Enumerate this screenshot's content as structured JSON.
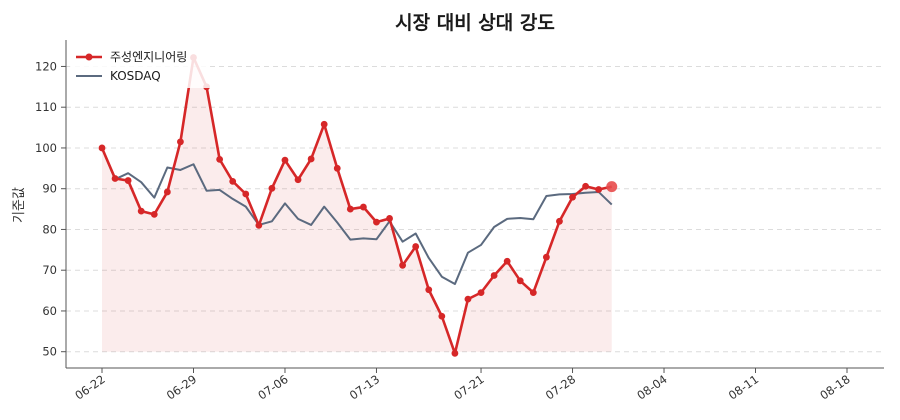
{
  "chart_data": {
    "type": "line",
    "title": "시장 대비 상대 강도",
    "xlabel": "",
    "ylabel": "기준값",
    "ylim": [
      46,
      126
    ],
    "yticks": [
      50,
      60,
      70,
      80,
      90,
      100,
      110,
      120
    ],
    "x": [
      "06-22",
      "06-23",
      "06-24",
      "06-25",
      "06-26",
      "06-27",
      "06-28",
      "06-29",
      "06-30",
      "07-01",
      "07-02",
      "07-03",
      "07-04",
      "07-05",
      "07-06",
      "07-07",
      "07-08",
      "07-09",
      "07-10",
      "07-11",
      "07-12",
      "07-13",
      "07-14",
      "07-15",
      "07-16",
      "07-17",
      "07-18",
      "07-19",
      "07-20",
      "07-21",
      "07-22",
      "07-23",
      "07-24",
      "07-25",
      "07-26",
      "07-27",
      "07-28",
      "07-29",
      "07-30",
      "07-31",
      "08-01",
      "08-02",
      "08-03",
      "08-04",
      "08-05",
      "08-06",
      "08-07",
      "08-08",
      "08-09",
      "08-10",
      "08-11",
      "08-12",
      "08-13",
      "08-14",
      "08-15",
      "08-16",
      "08-17",
      "08-18"
    ],
    "xticks": [
      "06-22",
      "06-29",
      "07-06",
      "07-13",
      "07-21",
      "07-28",
      "08-04",
      "08-11",
      "08-18"
    ],
    "series": [
      {
        "name": "주성엔지니어링",
        "color": "#d62728",
        "fill": true,
        "markers": true,
        "points": [
          [
            "06-22",
            100.0
          ],
          [
            "06-23",
            92.5
          ],
          [
            "06-24",
            92.0
          ],
          [
            "06-25",
            84.5
          ],
          [
            "06-26",
            83.7
          ],
          [
            "06-27",
            89.2
          ],
          [
            "06-28",
            101.5
          ],
          [
            "06-29",
            122.2
          ],
          [
            "06-30",
            115.0
          ],
          [
            "07-01",
            97.2
          ],
          [
            "07-02",
            91.8
          ],
          [
            "07-03",
            88.7
          ],
          [
            "07-04",
            81.0
          ],
          [
            "07-05",
            90.1
          ],
          [
            "07-06",
            97.0
          ],
          [
            "07-07",
            92.2
          ],
          [
            "07-08",
            97.3
          ],
          [
            "07-09",
            105.8
          ],
          [
            "07-10",
            95.0
          ],
          [
            "07-11",
            85.0
          ],
          [
            "07-12",
            85.5
          ],
          [
            "07-13",
            81.8
          ],
          [
            "07-14",
            82.7
          ],
          [
            "07-15",
            71.2
          ],
          [
            "07-16",
            75.8
          ],
          [
            "07-17",
            65.2
          ],
          [
            "07-18",
            58.7
          ],
          [
            "07-19",
            49.6
          ],
          [
            "07-20",
            62.9
          ],
          [
            "07-21",
            64.5
          ],
          [
            "07-22",
            68.7
          ],
          [
            "07-23",
            72.2
          ],
          [
            "07-24",
            67.4
          ],
          [
            "07-25",
            64.5
          ],
          [
            "07-26",
            73.2
          ],
          [
            "07-27",
            82.0
          ],
          [
            "07-28",
            87.9
          ],
          [
            "07-29",
            90.6
          ],
          [
            "07-30",
            89.8
          ],
          [
            "07-31",
            90.5
          ]
        ]
      },
      {
        "name": "KOSDAQ",
        "color": "#5b6a7f",
        "fill": false,
        "markers": false,
        "points": [
          [
            "06-22",
            100.0
          ],
          [
            "06-23",
            92.3
          ],
          [
            "06-24",
            93.8
          ],
          [
            "06-25",
            91.6
          ],
          [
            "06-26",
            87.8
          ],
          [
            "06-27",
            95.2
          ],
          [
            "06-28",
            94.6
          ],
          [
            "06-29",
            96.0
          ],
          [
            "06-30",
            89.5
          ],
          [
            "07-01",
            89.7
          ],
          [
            "07-02",
            87.5
          ],
          [
            "07-03",
            85.6
          ],
          [
            "07-04",
            81.1
          ],
          [
            "07-05",
            82.0
          ],
          [
            "07-06",
            86.4
          ],
          [
            "07-07",
            82.6
          ],
          [
            "07-08",
            81.1
          ],
          [
            "07-09",
            85.6
          ],
          [
            "07-10",
            81.7
          ],
          [
            "07-11",
            77.5
          ],
          [
            "07-12",
            77.8
          ],
          [
            "07-13",
            77.6
          ],
          [
            "07-14",
            82.0
          ],
          [
            "07-15",
            77.0
          ],
          [
            "07-16",
            79.0
          ],
          [
            "07-17",
            73.0
          ],
          [
            "07-18",
            68.4
          ],
          [
            "07-19",
            66.6
          ],
          [
            "07-20",
            74.3
          ],
          [
            "07-21",
            76.2
          ],
          [
            "07-22",
            80.6
          ],
          [
            "07-23",
            82.6
          ],
          [
            "07-24",
            82.8
          ],
          [
            "07-25",
            82.5
          ],
          [
            "07-26",
            88.2
          ],
          [
            "07-27",
            88.6
          ],
          [
            "07-28",
            88.7
          ],
          [
            "07-29",
            89.0
          ],
          [
            "07-30",
            89.2
          ],
          [
            "07-31",
            86.1
          ]
        ]
      }
    ],
    "legend_position": "top-left",
    "grid": "horizontal-dashed",
    "last_point_highlight": true
  }
}
